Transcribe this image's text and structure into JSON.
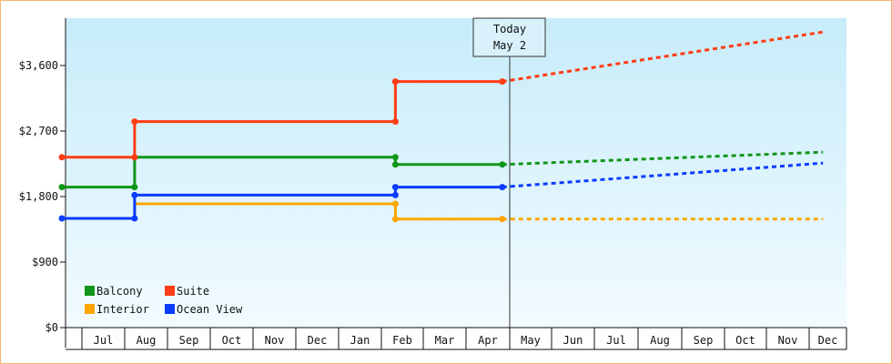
{
  "chart_data": {
    "type": "line",
    "step": true,
    "y_ticks": [
      {
        "value": 0,
        "label": "$0"
      },
      {
        "value": 900,
        "label": "$900"
      },
      {
        "value": 1800,
        "label": "$1,800"
      },
      {
        "value": 2700,
        "label": "$2,700"
      },
      {
        "value": 3600,
        "label": "$3,600"
      }
    ],
    "ylim": [
      0,
      4250
    ],
    "months": [
      "",
      "Jul",
      "Aug",
      "Sep",
      "Oct",
      "Nov",
      "Dec",
      "Jan",
      "Feb",
      "Mar",
      "Apr",
      "May",
      "Jun",
      "Jul",
      "Aug",
      "Sep",
      "Oct",
      "Nov",
      "Dec"
    ],
    "today": {
      "line1": "Today",
      "line2": "May 2",
      "x": 10.3
    },
    "grid": false,
    "legend_placement": "bottom-left",
    "series": [
      {
        "name": "Balcony",
        "color": "#109618",
        "actual": [
          [
            0,
            1930
          ],
          [
            1.7,
            1930
          ],
          [
            1.7,
            2340
          ],
          [
            7.8,
            2340
          ],
          [
            7.8,
            2240
          ],
          [
            10.3,
            2240
          ]
        ],
        "points": [
          [
            0,
            1930
          ],
          [
            1.7,
            1930
          ],
          [
            1.7,
            2340
          ],
          [
            7.8,
            2340
          ],
          [
            7.8,
            2240
          ],
          [
            10.3,
            2240
          ]
        ],
        "forecast": [
          [
            10.3,
            2240
          ],
          [
            17.8,
            2410
          ]
        ]
      },
      {
        "name": "Suite",
        "color": "#ff3c14",
        "actual": [
          [
            0,
            2340
          ],
          [
            1.7,
            2340
          ],
          [
            1.7,
            2830
          ],
          [
            7.8,
            2830
          ],
          [
            7.8,
            3380
          ],
          [
            10.3,
            3380
          ]
        ],
        "points": [
          [
            0,
            2340
          ],
          [
            1.7,
            2340
          ],
          [
            1.7,
            2830
          ],
          [
            7.8,
            2830
          ],
          [
            7.8,
            3380
          ],
          [
            10.3,
            3380
          ]
        ],
        "forecast": [
          [
            10.3,
            3380
          ],
          [
            17.8,
            4060
          ]
        ]
      },
      {
        "name": "Interior",
        "color": "#ffa500",
        "actual": [
          [
            1.7,
            1500
          ],
          [
            1.7,
            1700
          ],
          [
            7.8,
            1700
          ],
          [
            7.8,
            1490
          ],
          [
            10.3,
            1490
          ]
        ],
        "points": [
          [
            7.8,
            1700
          ],
          [
            7.8,
            1490
          ],
          [
            10.3,
            1490
          ]
        ],
        "forecast": [
          [
            10.3,
            1490
          ],
          [
            17.8,
            1490
          ]
        ]
      },
      {
        "name": "Ocean View",
        "color": "#0a3cff",
        "actual": [
          [
            0,
            1500
          ],
          [
            1.7,
            1500
          ],
          [
            1.7,
            1820
          ],
          [
            7.8,
            1820
          ],
          [
            7.8,
            1930
          ],
          [
            10.3,
            1930
          ]
        ],
        "points": [
          [
            0,
            1500
          ],
          [
            1.7,
            1500
          ],
          [
            1.7,
            1820
          ],
          [
            7.8,
            1820
          ],
          [
            7.8,
            1930
          ],
          [
            10.3,
            1930
          ]
        ],
        "forecast": [
          [
            10.3,
            1930
          ],
          [
            17.8,
            2260
          ]
        ]
      }
    ]
  }
}
